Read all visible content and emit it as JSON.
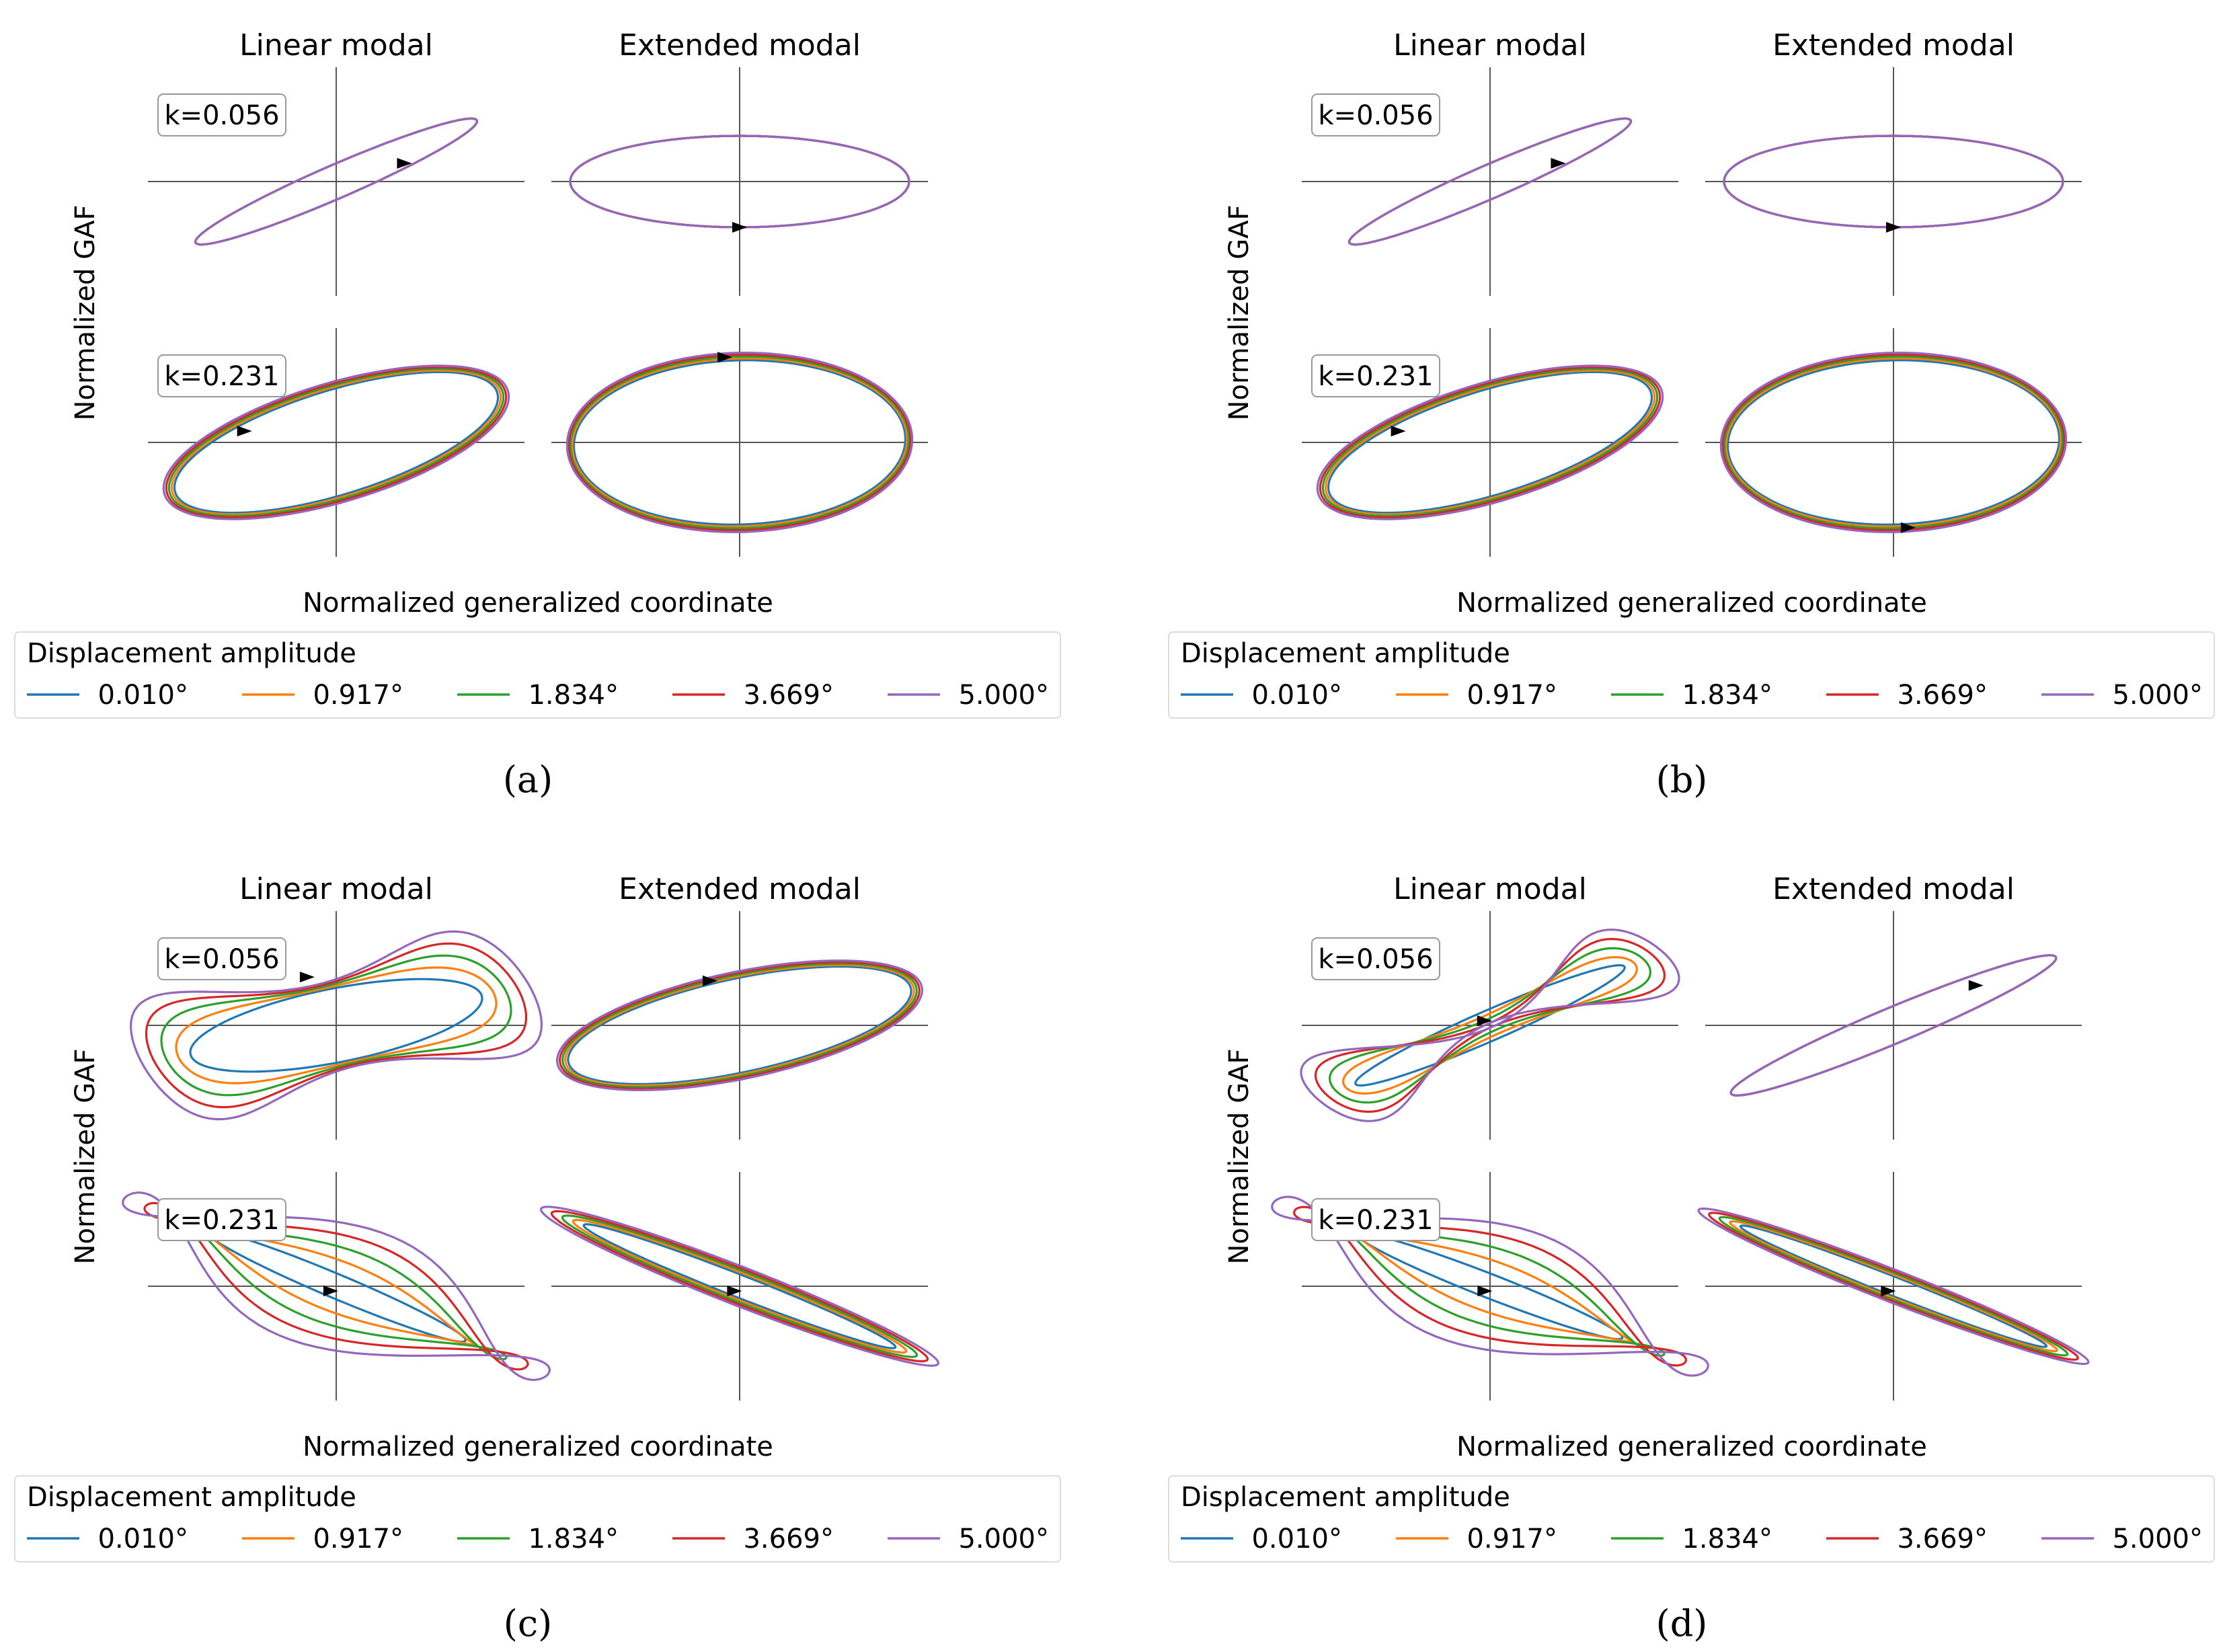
{
  "figure": {
    "panel_labels": [
      "(a)",
      "(b)",
      "(c)",
      "(d)"
    ],
    "column_titles": [
      "Linear modal",
      "Extended modal"
    ],
    "xlabel": "Normalized generalized coordinate",
    "ylabel": "Normalized GAF",
    "row_labels": [
      "k=0.056",
      "k=0.231"
    ],
    "legend_title": "Displacement amplitude",
    "legend_items": [
      {
        "label": "0.010°",
        "color": "#1f77b4"
      },
      {
        "label": "0.917°",
        "color": "#ff7f0e"
      },
      {
        "label": "1.834°",
        "color": "#2ca02c"
      },
      {
        "label": "3.669°",
        "color": "#d62728"
      },
      {
        "label": "5.000°",
        "color": "#9467bd"
      }
    ]
  },
  "chart_data": [
    {
      "panel": "a",
      "type": "line",
      "xlabel": "Normalized generalized coordinate",
      "ylabel": "Normalized GAF",
      "series": [
        "0.010°",
        "0.917°",
        "1.834°",
        "3.669°",
        "5.000°"
      ],
      "subplots": [
        {
          "row": "k=0.056",
          "col": "Linear modal",
          "curve": "ellipse",
          "tilt_deg": 36,
          "a": 0.92,
          "b": 0.13,
          "spread": 0.0,
          "arrow": "lower-right"
        },
        {
          "row": "k=0.056",
          "col": "Extended modal",
          "curve": "ellipse",
          "tilt_deg": 0,
          "a": 0.9,
          "b": 0.4,
          "spread": 0.0,
          "arrow": "bottom"
        },
        {
          "row": "k=0.231",
          "col": "Linear modal",
          "curve": "ellipse",
          "tilt_deg": 31,
          "a": 1.0,
          "b": 0.45,
          "spread": 0.015,
          "arrow": "upper-left"
        },
        {
          "row": "k=0.231",
          "col": "Extended modal",
          "curve": "ellipse",
          "tilt_deg": 6,
          "a": 0.9,
          "b": 0.75,
          "spread": 0.01,
          "arrow": "top"
        }
      ]
    },
    {
      "panel": "b",
      "type": "line",
      "xlabel": "Normalized generalized coordinate",
      "ylabel": "Normalized GAF",
      "series": [
        "0.010°",
        "0.917°",
        "1.834°",
        "3.669°",
        "5.000°"
      ],
      "subplots": [
        {
          "row": "k=0.056",
          "col": "Linear modal",
          "curve": "ellipse",
          "tilt_deg": 36,
          "a": 0.92,
          "b": 0.13,
          "spread": 0.0,
          "arrow": "lower-right"
        },
        {
          "row": "k=0.056",
          "col": "Extended modal",
          "curve": "ellipse",
          "tilt_deg": 0,
          "a": 0.9,
          "b": 0.4,
          "spread": 0.0,
          "arrow": "bottom"
        },
        {
          "row": "k=0.231",
          "col": "Linear modal",
          "curve": "ellipse",
          "tilt_deg": 31,
          "a": 1.0,
          "b": 0.45,
          "spread": 0.015,
          "arrow": "upper-left"
        },
        {
          "row": "k=0.231",
          "col": "Extended modal",
          "curve": "ellipse",
          "tilt_deg": 6,
          "a": 0.9,
          "b": 0.75,
          "spread": 0.01,
          "arrow": "bottom"
        }
      ]
    },
    {
      "panel": "c",
      "type": "line",
      "xlabel": "Normalized generalized coordinate",
      "ylabel": "Normalized GAF",
      "series": [
        "0.010°",
        "0.917°",
        "1.834°",
        "3.669°",
        "5.000°"
      ],
      "subplots": [
        {
          "row": "k=0.056",
          "col": "Linear modal",
          "curve": "distorted",
          "tilt_deg": 20,
          "a": 0.95,
          "b": 0.45,
          "spread": 0.07,
          "arrow": "top"
        },
        {
          "row": "k=0.056",
          "col": "Extended modal",
          "curve": "ellipse",
          "tilt_deg": 22,
          "a": 1.0,
          "b": 0.42,
          "spread": 0.015,
          "arrow": "top"
        },
        {
          "row": "k=0.231",
          "col": "Linear modal",
          "curve": "distorted",
          "tilt_deg": -35,
          "a": 1.1,
          "b": 0.2,
          "spread": 0.12,
          "arrow": "center"
        },
        {
          "row": "k=0.231",
          "col": "Extended modal",
          "curve": "ellipse",
          "tilt_deg": -33,
          "a": 1.12,
          "b": 0.12,
          "spread": 0.06,
          "arrow": "center"
        }
      ]
    },
    {
      "panel": "d",
      "type": "line",
      "xlabel": "Normalized generalized coordinate",
      "ylabel": "Normalized GAF",
      "series": [
        "0.010°",
        "0.917°",
        "1.834°",
        "3.669°",
        "5.000°"
      ],
      "subplots": [
        {
          "row": "k=0.056",
          "col": "Linear modal",
          "curve": "distorted",
          "tilt_deg": 36,
          "a": 1.0,
          "b": 0.16,
          "spread": 0.06,
          "arrow": "center"
        },
        {
          "row": "k=0.056",
          "col": "Extended modal",
          "curve": "ellipse",
          "tilt_deg": 35,
          "a": 1.05,
          "b": 0.14,
          "spread": 0.0,
          "arrow": "upper"
        },
        {
          "row": "k=0.231",
          "col": "Linear modal",
          "curve": "distorted",
          "tilt_deg": -33,
          "a": 1.1,
          "b": 0.2,
          "spread": 0.12,
          "arrow": "center"
        },
        {
          "row": "k=0.231",
          "col": "Extended modal",
          "curve": "ellipse",
          "tilt_deg": -33,
          "a": 1.1,
          "b": 0.1,
          "spread": 0.06,
          "arrow": "center"
        }
      ]
    }
  ]
}
